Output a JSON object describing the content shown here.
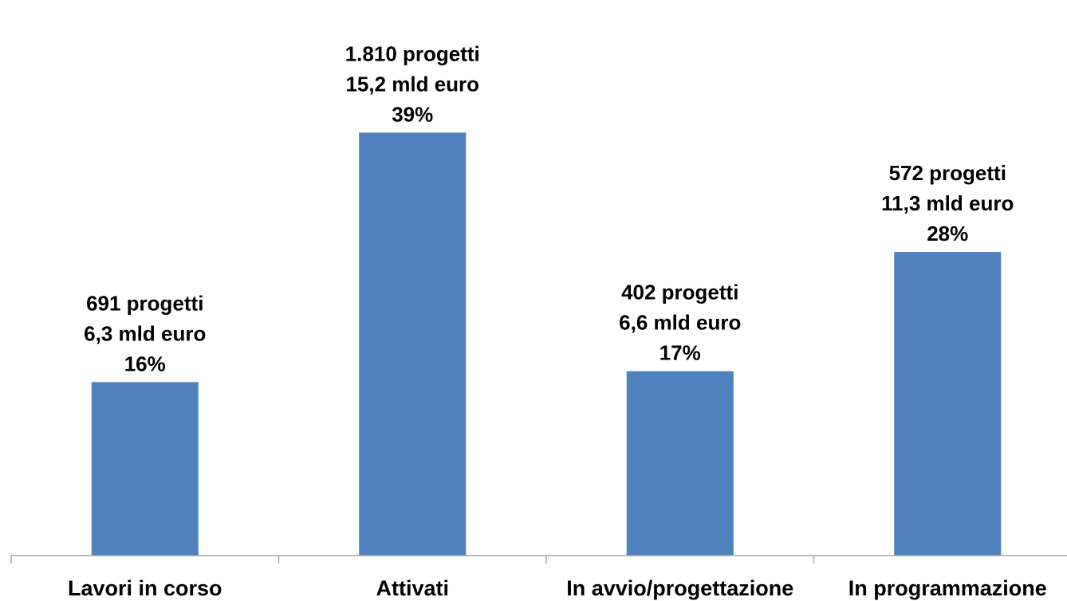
{
  "chart_data": {
    "type": "bar",
    "categories": [
      "Lavori in corso",
      "Attivati",
      "In avvio/progettazione",
      "In programmazione"
    ],
    "values": [
      16,
      39,
      17,
      28
    ],
    "unit": "%",
    "data_labels": [
      [
        "691 progetti",
        "6,3 mld euro",
        "16%"
      ],
      [
        "1.810 progetti",
        "15,2 mld euro",
        "39%"
      ],
      [
        "402 progetti",
        "6,6 mld euro",
        "17%"
      ],
      [
        "572 progetti",
        "11,3 mld euro",
        "28%"
      ]
    ],
    "title": "",
    "xlabel": "",
    "ylabel": "",
    "ylim": [
      0,
      43
    ],
    "grid": false,
    "legend": "none",
    "bar_color": "#4F81BD",
    "axis_color": "#A6A6A6"
  }
}
